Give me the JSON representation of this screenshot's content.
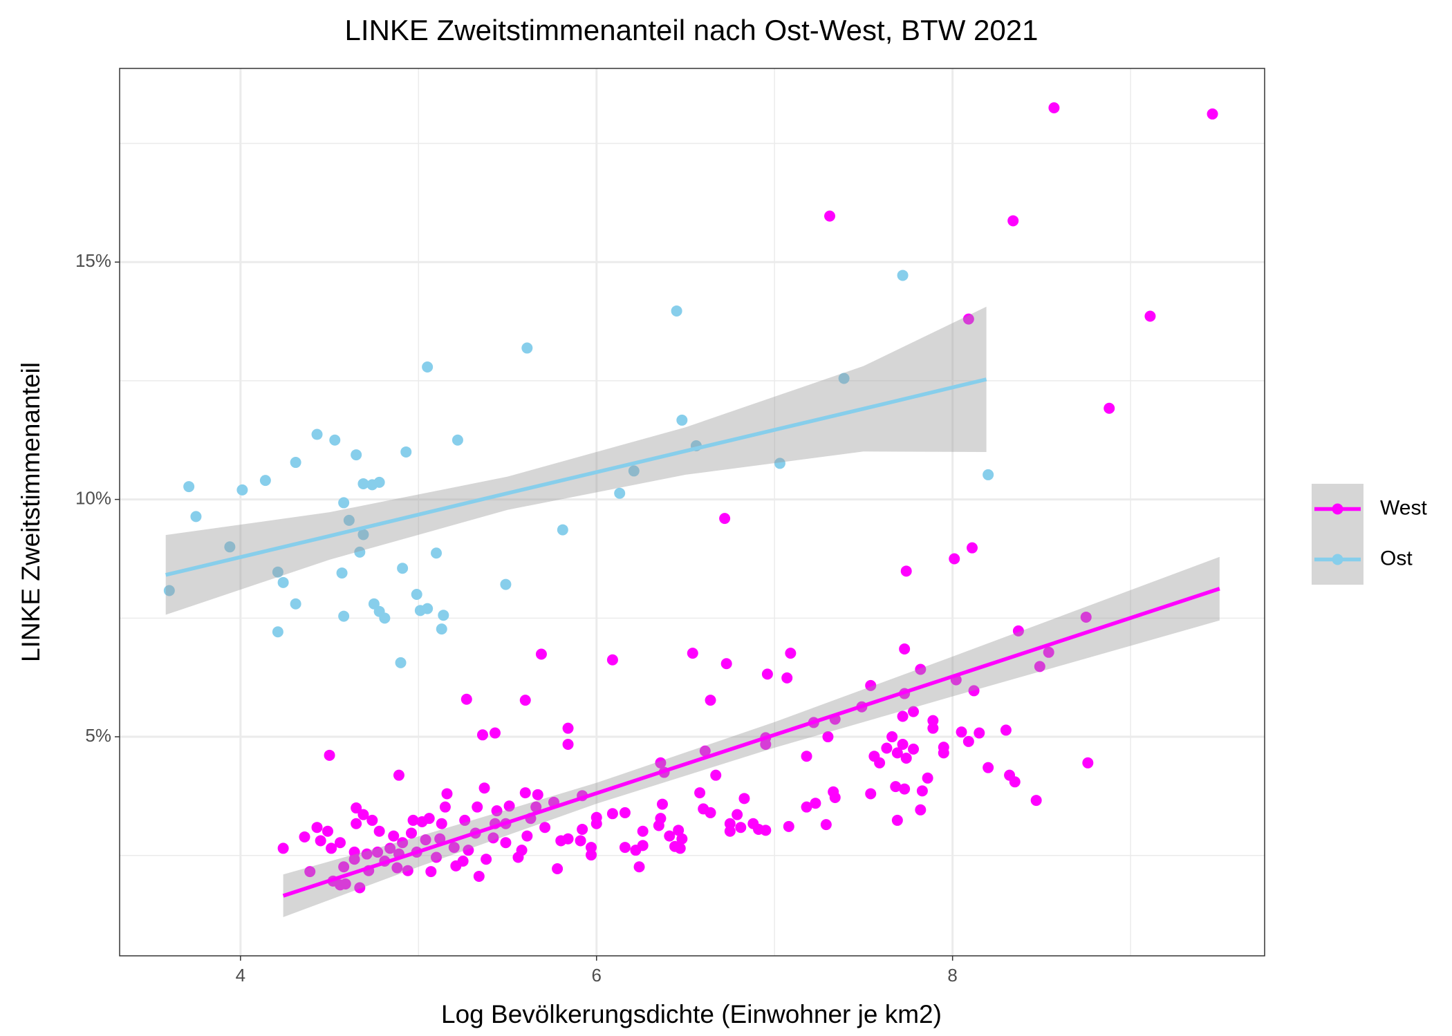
{
  "chart_data": {
    "type": "scatter",
    "title": "LINKE Zweitstimmenanteil nach Ost-West, BTW 2021",
    "x_label": "Log Bevölkerungsdichte (Einwohner je km2)",
    "y_label": "LINKE Zweitstimmenanteil",
    "xlim": [
      3.321,
      9.753
    ],
    "ylim": [
      0.385,
      19.08
    ],
    "xticks": [
      4,
      6,
      8
    ],
    "yticks": [
      {
        "value": 5,
        "label": "5%"
      },
      {
        "value": 10,
        "label": "10%"
      },
      {
        "value": 15,
        "label": "15%"
      }
    ],
    "x_minor_ticks": [
      5,
      7,
      9
    ],
    "y_minor_ticks": [
      2.5,
      7.5,
      12.5,
      17.5
    ],
    "grid": true,
    "legend_position": "right",
    "series": [
      {
        "name": "West",
        "color": "#ff00ff",
        "x": [
          8.57,
          9.46,
          7.31,
          8.34,
          9.11,
          8.09,
          8.88,
          6.72,
          8.01,
          8.11,
          7.74,
          8.75,
          8.37,
          8.54,
          8.49,
          7.73,
          7.82,
          7.54,
          8.02,
          8.12,
          7.73,
          7.78,
          7.72,
          7.49,
          7.34,
          7.22,
          7.3,
          7.66,
          7.89,
          7.89,
          8.05,
          8.15,
          8.3,
          8.09,
          7.95,
          7.95,
          7.63,
          7.72,
          7.78,
          7.56,
          7.59,
          7.69,
          7.74,
          7.18,
          6.95,
          6.95,
          6.54,
          6.73,
          7.09,
          6.96,
          7.07,
          6.09,
          5.69,
          5.27,
          5.6,
          6.64,
          5.36,
          5.43,
          5.84,
          5.84,
          4.5,
          4.89,
          6.61,
          6.36,
          6.38,
          6.67,
          8.2,
          8.32,
          8.35,
          8.76,
          7.86,
          7.83,
          7.54,
          7.68,
          7.73,
          7.33,
          7.34,
          7.23,
          7.18,
          7.82,
          8.47,
          7.69,
          7.29,
          7.08,
          6.83,
          6.79,
          6.58,
          6.6,
          6.64,
          6.37,
          6.36,
          6.35,
          6.26,
          6.16,
          6.09,
          5.92,
          6.0,
          6.0,
          5.92,
          5.91,
          5.97,
          5.97,
          6.26,
          6.41,
          6.46,
          6.48,
          6.44,
          6.47,
          6.16,
          6.22,
          6.24,
          6.75,
          6.81,
          6.88,
          6.91,
          6.95,
          6.75,
          5.78,
          5.8,
          5.84,
          5.76,
          5.71,
          5.66,
          5.67,
          5.6,
          5.63,
          5.61,
          5.58,
          5.56,
          5.51,
          5.49,
          5.49,
          5.44,
          5.43,
          5.42,
          5.38,
          5.37,
          5.33,
          5.32,
          5.34,
          5.28,
          5.25,
          5.26,
          5.16,
          5.15,
          5.13,
          5.12,
          5.1,
          5.2,
          5.21,
          5.06,
          5.04,
          5.02,
          4.99,
          5.07,
          4.94,
          4.97,
          4.96,
          4.91,
          4.89,
          4.88,
          4.86,
          4.84,
          4.81,
          4.78,
          4.77,
          4.74,
          4.72,
          4.71,
          4.69,
          4.65,
          4.65,
          4.64,
          4.64,
          4.67,
          4.59,
          4.56,
          4.58,
          4.56,
          4.52,
          4.51,
          4.49,
          4.45,
          4.43,
          4.36,
          4.39,
          4.24
        ],
        "values": [
          18.25,
          18.12,
          15.97,
          15.87,
          13.86,
          13.8,
          11.92,
          9.6,
          8.75,
          8.98,
          8.49,
          7.52,
          7.23,
          6.78,
          6.48,
          6.85,
          6.42,
          6.08,
          6.2,
          5.97,
          5.91,
          5.53,
          5.43,
          5.63,
          5.37,
          5.3,
          5.0,
          5.0,
          5.18,
          5.34,
          5.1,
          5.08,
          5.14,
          4.9,
          4.78,
          4.66,
          4.76,
          4.84,
          4.74,
          4.59,
          4.45,
          4.66,
          4.55,
          4.59,
          4.98,
          4.84,
          6.76,
          6.54,
          6.76,
          6.32,
          6.24,
          6.62,
          6.74,
          5.79,
          5.77,
          5.77,
          5.04,
          5.08,
          5.18,
          4.84,
          4.61,
          4.19,
          4.7,
          4.45,
          4.25,
          4.19,
          4.35,
          4.19,
          4.05,
          4.45,
          4.13,
          3.86,
          3.8,
          3.95,
          3.9,
          3.84,
          3.72,
          3.6,
          3.52,
          3.46,
          3.66,
          3.24,
          3.15,
          3.11,
          3.7,
          3.36,
          3.82,
          3.48,
          3.4,
          3.58,
          3.28,
          3.13,
          3.01,
          3.4,
          3.38,
          3.76,
          3.3,
          3.17,
          3.05,
          2.81,
          2.67,
          2.51,
          2.71,
          2.91,
          3.03,
          2.85,
          2.69,
          2.65,
          2.67,
          2.61,
          2.26,
          3.01,
          3.09,
          3.17,
          3.05,
          3.03,
          3.17,
          2.22,
          2.81,
          2.85,
          3.62,
          3.09,
          3.52,
          3.78,
          3.82,
          3.28,
          2.91,
          2.61,
          2.46,
          3.54,
          3.17,
          2.77,
          3.44,
          3.17,
          2.87,
          2.42,
          3.92,
          3.52,
          2.97,
          2.06,
          2.61,
          2.38,
          3.24,
          3.8,
          3.52,
          3.17,
          2.85,
          2.46,
          2.67,
          2.28,
          3.28,
          2.83,
          3.21,
          2.57,
          2.16,
          2.18,
          3.24,
          2.97,
          2.77,
          2.53,
          2.24,
          2.91,
          2.65,
          2.38,
          3.01,
          2.57,
          3.24,
          2.18,
          2.53,
          3.36,
          3.5,
          3.17,
          2.42,
          2.57,
          1.82,
          1.9,
          1.88,
          2.26,
          2.77,
          1.96,
          2.65,
          3.01,
          2.81,
          3.09,
          2.89,
          2.16,
          2.65
        ],
        "fit": {
          "x": [
            4.24,
            5,
            6,
            7,
            8,
            9.5
          ],
          "values": [
            1.65,
            2.58,
            3.81,
            5.04,
            6.27,
            8.12
          ],
          "lower": [
            1.2,
            2.26,
            3.59,
            4.77,
            5.85,
            7.45
          ],
          "upper": [
            2.1,
            2.9,
            4.03,
            5.31,
            6.69,
            8.79
          ]
        }
      },
      {
        "name": "Ost",
        "color": "#87ceeb",
        "x": [
          3.6,
          3.71,
          3.75,
          3.94,
          4.01,
          4.14,
          4.21,
          4.24,
          4.21,
          4.31,
          4.31,
          4.43,
          4.53,
          4.58,
          4.61,
          4.57,
          4.58,
          4.65,
          4.67,
          4.69,
          4.69,
          4.74,
          4.78,
          4.75,
          4.78,
          4.81,
          4.9,
          4.91,
          4.93,
          4.99,
          5.01,
          5.05,
          5.05,
          5.1,
          5.13,
          5.14,
          5.22,
          5.49,
          5.61,
          5.81,
          6.13,
          6.21,
          6.45,
          6.48,
          6.56,
          7.03,
          7.39,
          7.72,
          8.2
        ],
        "values": [
          8.08,
          10.27,
          9.64,
          9.0,
          10.2,
          10.4,
          8.47,
          8.25,
          7.21,
          7.8,
          10.78,
          11.37,
          11.25,
          9.93,
          9.56,
          8.45,
          7.54,
          10.94,
          8.89,
          9.26,
          10.33,
          10.31,
          10.36,
          7.8,
          7.64,
          7.5,
          6.56,
          8.55,
          11.0,
          8.0,
          7.66,
          7.7,
          12.79,
          8.87,
          7.27,
          7.56,
          11.25,
          8.21,
          13.19,
          9.36,
          10.13,
          10.6,
          13.97,
          11.67,
          11.13,
          10.76,
          12.55,
          14.72,
          10.52
        ],
        "fit": {
          "x": [
            3.58,
            4.5,
            5.5,
            6.5,
            7.5,
            8.19
          ],
          "values": [
            8.41,
            9.23,
            10.13,
            11.02,
            11.91,
            12.53
          ],
          "lower": [
            7.57,
            8.73,
            9.78,
            10.52,
            11.01,
            11.0
          ],
          "upper": [
            9.25,
            9.73,
            10.48,
            11.52,
            12.81,
            14.06
          ]
        }
      }
    ]
  }
}
